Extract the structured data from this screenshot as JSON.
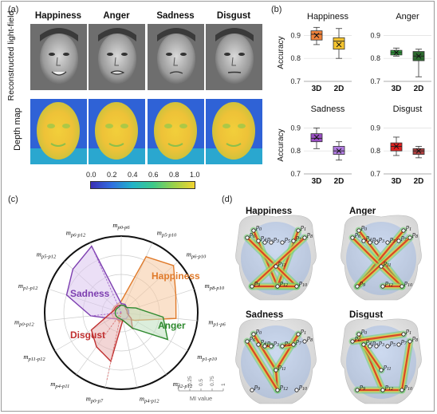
{
  "panels": {
    "a": "(a)",
    "b": "(b)",
    "c": "(c)",
    "d": "(d)"
  },
  "emotions": [
    "Happiness",
    "Anger",
    "Sadness",
    "Disgust"
  ],
  "panel_a": {
    "row_labels": [
      "Reconstructed light-field",
      "Depth map"
    ],
    "colorbar_ticks": [
      "0.0",
      "0.2",
      "0.4",
      "0.6",
      "0.8",
      "1.0"
    ]
  },
  "panel_b": {
    "ylabel": "Accuracy",
    "yticks_top": [
      "0.9",
      "0.8",
      "0.7"
    ],
    "yticks_bottom": [
      "0.9",
      "0.8",
      "0.7"
    ],
    "categories": [
      "3D",
      "2D"
    ]
  },
  "panel_c": {
    "spoke_labels": [
      {
        "base": "m",
        "sub": "p0-p6"
      },
      {
        "base": "m",
        "sub": "p5-p10"
      },
      {
        "base": "m",
        "sub": "p6-p10"
      },
      {
        "base": "m",
        "sub": "p8-p10"
      },
      {
        "base": "m",
        "sub": "p1-p6"
      },
      {
        "base": "m",
        "sub": "p1-p10"
      },
      {
        "base": "m",
        "sub": "p2-p12"
      },
      {
        "base": "m",
        "sub": "p4-p12"
      },
      {
        "base": "m",
        "sub": "p0-p7"
      },
      {
        "base": "m",
        "sub": "p4-p11"
      },
      {
        "base": "m",
        "sub": "p11-p12"
      },
      {
        "base": "m",
        "sub": "p0-p12"
      },
      {
        "base": "m",
        "sub": "p1-p12"
      },
      {
        "base": "m",
        "sub": "p5-p12"
      },
      {
        "base": "m",
        "sub": "p6-p12"
      }
    ],
    "series_labels": [
      "Happiness",
      "Anger",
      "Sadness",
      "Disgust"
    ],
    "mi_ticks": [
      "0",
      "0.25",
      "0.5",
      "0.75",
      "1"
    ],
    "mi_label": "MI value"
  },
  "panel_d": {
    "point_labels": {
      "p0": "p0",
      "p1": "p1",
      "p2": "p2",
      "p3": "p3",
      "p4": "p4",
      "p5": "p5",
      "p6": "p6",
      "p7": "p7",
      "p8": "p8",
      "p9": "p9",
      "p10": "p10",
      "p11": "p11",
      "p12": "p12"
    }
  },
  "chart_data": [
    {
      "type": "box",
      "title": "Happiness",
      "ylabel": "Accuracy",
      "ylim": [
        0.7,
        0.95
      ],
      "categories": [
        "3D",
        "2D"
      ],
      "boxes": [
        {
          "category": "3D",
          "min": 0.86,
          "q1": 0.88,
          "median": 0.905,
          "mean": 0.9,
          "q3": 0.92,
          "max": 0.935,
          "color": "#f0823a"
        },
        {
          "category": "2D",
          "min": 0.8,
          "q1": 0.84,
          "median": 0.875,
          "mean": 0.86,
          "q3": 0.89,
          "max": 0.93,
          "color": "#f4c430"
        }
      ]
    },
    {
      "type": "box",
      "title": "Anger",
      "ylabel": "Accuracy",
      "ylim": [
        0.7,
        0.95
      ],
      "categories": [
        "3D",
        "2D"
      ],
      "boxes": [
        {
          "category": "3D",
          "min": 0.81,
          "q1": 0.815,
          "median": 0.825,
          "mean": 0.825,
          "q3": 0.835,
          "max": 0.845,
          "color": "#2f9a3a"
        },
        {
          "category": "2D",
          "min": 0.72,
          "q1": 0.79,
          "median": 0.81,
          "mean": 0.81,
          "q3": 0.83,
          "max": 0.84,
          "color": "#2d6a2e"
        }
      ]
    },
    {
      "type": "box",
      "title": "Sadness",
      "ylabel": "Accuracy",
      "ylim": [
        0.7,
        0.95
      ],
      "categories": [
        "3D",
        "2D"
      ],
      "boxes": [
        {
          "category": "3D",
          "min": 0.81,
          "q1": 0.84,
          "median": 0.855,
          "mean": 0.86,
          "q3": 0.875,
          "max": 0.9,
          "color": "#9a4fc3"
        },
        {
          "category": "2D",
          "min": 0.76,
          "q1": 0.785,
          "median": 0.8,
          "mean": 0.8,
          "q3": 0.82,
          "max": 0.84,
          "color": "#b07be0"
        }
      ]
    },
    {
      "type": "box",
      "title": "Disgust",
      "ylabel": "Accuracy",
      "ylim": [
        0.7,
        0.95
      ],
      "categories": [
        "3D",
        "2D"
      ],
      "boxes": [
        {
          "category": "3D",
          "min": 0.78,
          "q1": 0.8,
          "median": 0.82,
          "mean": 0.82,
          "q3": 0.835,
          "max": 0.86,
          "color": "#e02020"
        },
        {
          "category": "2D",
          "min": 0.77,
          "q1": 0.785,
          "median": 0.8,
          "mean": 0.8,
          "q3": 0.81,
          "max": 0.82,
          "color": "#b04040"
        }
      ]
    }
  ]
}
